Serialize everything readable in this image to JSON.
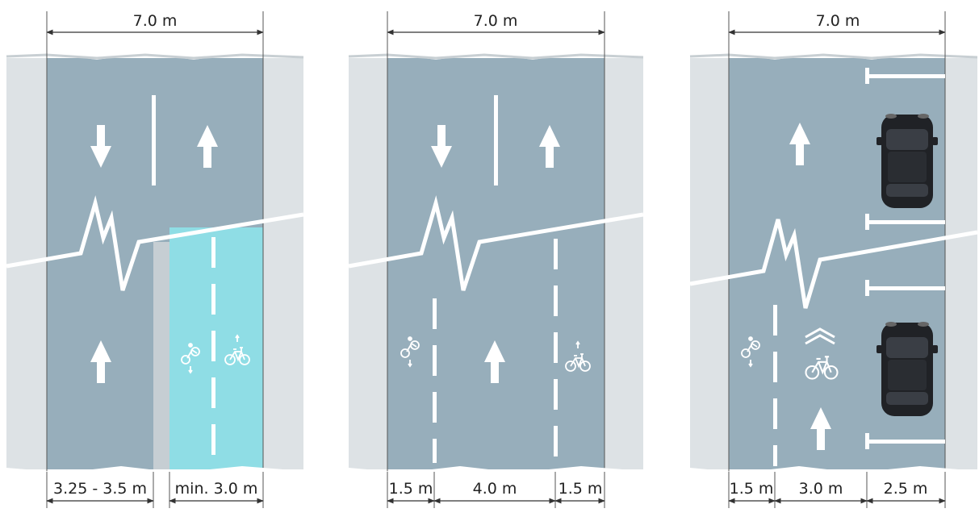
{
  "panels": [
    {
      "width_label": "7.0 m",
      "segments": [
        "3.25 - 3.5 m",
        "min. 3.0 m"
      ]
    },
    {
      "width_label": "7.0 m",
      "segments": [
        "1.5 m",
        "4.0 m",
        "1.5 m"
      ]
    },
    {
      "width_label": "7.0 m",
      "segments": [
        "1.5 m",
        "3.0 m",
        "2.5 m"
      ]
    }
  ],
  "colors": {
    "road": "#97aebb",
    "road_dark": "#889fac",
    "sidewalk": "#dde2e5",
    "cycle_track": "#8fdde5",
    "marking": "#ffffff",
    "dimension": "#333333"
  },
  "icons": [
    "arrow-down-icon",
    "arrow-up-icon",
    "cyclist-icon",
    "bicycle-icon",
    "car-icon",
    "chevron-icon",
    "break-line-icon"
  ]
}
